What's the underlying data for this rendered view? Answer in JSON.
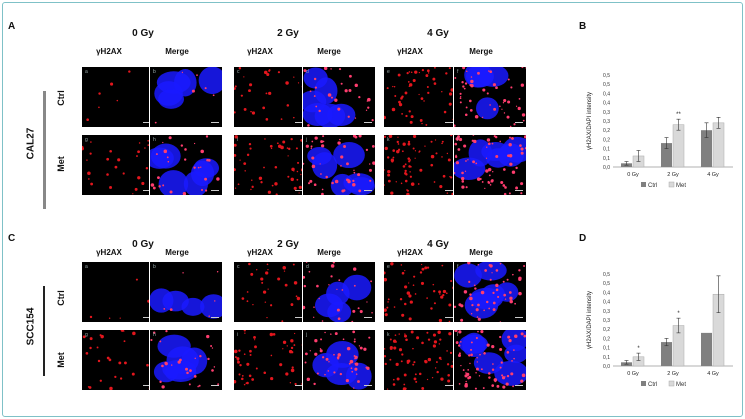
{
  "panels": {
    "A": "A",
    "B": "B",
    "C": "C",
    "D": "D"
  },
  "doses": [
    "0 Gy",
    "2 Gy",
    "4 Gy"
  ],
  "channels": {
    "gamma": "γH2AX",
    "merge": "Merge"
  },
  "rows": {
    "ctrl": "Ctrl",
    "met": "Met"
  },
  "cell_lines": {
    "top": "CAL27",
    "bottom": "SCC154"
  },
  "tile_letters": [
    "a",
    "b",
    "c",
    "d",
    "e",
    "f",
    "g",
    "h",
    "i",
    "j",
    "k",
    "l"
  ],
  "colors": {
    "frame": "#7fc1c7",
    "ctrl_bar": "#808080",
    "met_bar": "#d9d9d9",
    "red": "#e3161d",
    "blue": "#1a1aff"
  },
  "chart_data": [
    {
      "panel": "B",
      "type": "bar",
      "ylabel": "γH2AX/DAPI intensity",
      "categories": [
        "0 Gy",
        "2 Gy",
        "4 Gy"
      ],
      "ylim": [
        0,
        0.5
      ],
      "yticks": [
        "0,0",
        "0,1",
        "0,1",
        "0,2",
        "0,2",
        "0,3",
        "0,3",
        "0,4",
        "0,4",
        "0,5",
        "0,5"
      ],
      "series": [
        {
          "name": "Ctrl",
          "values": [
            0.02,
            0.13,
            0.2
          ],
          "errors": [
            0.01,
            0.03,
            0.04
          ]
        },
        {
          "name": "Met",
          "values": [
            0.06,
            0.23,
            0.24
          ],
          "errors": [
            0.03,
            0.03,
            0.03
          ]
        }
      ],
      "annotations": [
        {
          "category": "2 Gy",
          "series": "Met",
          "text": "**"
        }
      ],
      "legend": "bottom"
    },
    {
      "panel": "D",
      "type": "bar",
      "ylabel": "γH2AX/DAPI intensity",
      "categories": [
        "0 Gy",
        "2 Gy",
        "4 Gy"
      ],
      "ylim": [
        0,
        0.5
      ],
      "yticks": [
        "0,0",
        "0,1",
        "0,1",
        "0,2",
        "0,2",
        "0,3",
        "0,3",
        "0,4",
        "0,4",
        "0,5",
        "0,5"
      ],
      "series": [
        {
          "name": "Ctrl",
          "values": [
            0.02,
            0.13,
            0.18
          ],
          "errors": [
            0.01,
            0.02,
            0.0
          ]
        },
        {
          "name": "Met",
          "values": [
            0.05,
            0.22,
            0.39
          ],
          "errors": [
            0.02,
            0.04,
            0.1
          ]
        }
      ],
      "annotations": [
        {
          "category": "0 Gy",
          "series": "Met",
          "text": "*"
        },
        {
          "category": "2 Gy",
          "series": "Met",
          "text": "*"
        }
      ],
      "legend": "bottom"
    }
  ]
}
